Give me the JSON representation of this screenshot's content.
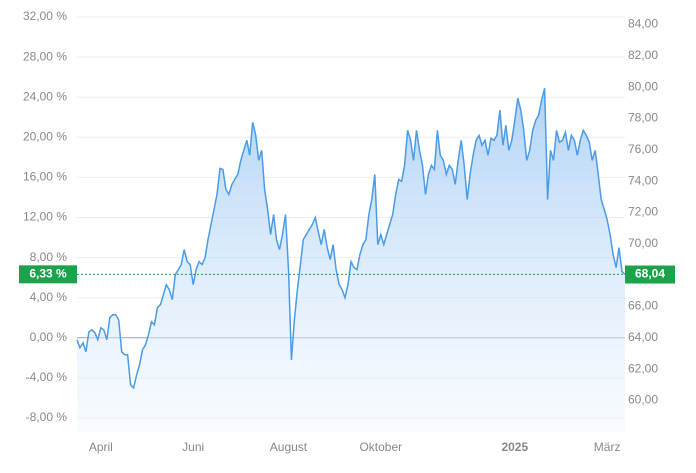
{
  "chart_data": {
    "type": "line",
    "color": "#4a9be8",
    "values": [
      -0.2,
      -1.0,
      -0.5,
      -1.4,
      0.6,
      0.8,
      0.5,
      -0.2,
      1.0,
      0.8,
      -0.2,
      2.0,
      2.3,
      2.3,
      1.8,
      -1.4,
      -1.7,
      -1.7,
      -4.7,
      -5.0,
      -3.7,
      -2.7,
      -1.2,
      -0.7,
      0.3,
      1.6,
      1.3,
      3.0,
      3.3,
      4.3,
      5.3,
      4.8,
      3.8,
      6.3,
      6.8,
      7.3,
      8.8,
      7.6,
      7.3,
      5.3,
      6.8,
      7.6,
      7.3,
      8.0,
      9.8,
      11.3,
      12.8,
      14.3,
      16.9,
      16.8,
      14.8,
      14.3,
      15.3,
      15.8,
      16.3,
      17.7,
      18.7,
      19.7,
      18.2,
      21.5,
      20.2,
      17.7,
      18.7,
      14.8,
      12.8,
      10.3,
      12.3,
      9.8,
      8.8,
      10.3,
      12.3,
      6.8,
      -2.2,
      1.8,
      4.8,
      7.3,
      9.8,
      10.3,
      10.8,
      11.3,
      12.0,
      10.6,
      9.3,
      10.8,
      9.0,
      7.8,
      9.3,
      6.8,
      5.3,
      4.8,
      4.0,
      5.3,
      7.6,
      7.0,
      6.8,
      8.3,
      9.3,
      9.8,
      12.3,
      13.8,
      16.3,
      9.3,
      10.3,
      9.3,
      10.3,
      11.3,
      12.3,
      14.3,
      15.8,
      15.6,
      17.2,
      20.7,
      19.7,
      17.7,
      20.7,
      18.7,
      17.2,
      14.3,
      16.3,
      17.2,
      16.8,
      20.7,
      18.2,
      17.7,
      16.3,
      17.2,
      16.8,
      15.3,
      17.7,
      19.7,
      17.2,
      13.8,
      16.3,
      18.2,
      19.7,
      20.2,
      19.2,
      19.7,
      18.2,
      19.9,
      19.7,
      20.2,
      22.7,
      19.2,
      21.2,
      18.7,
      19.7,
      21.7,
      23.9,
      22.7,
      20.7,
      17.7,
      18.7,
      20.7,
      21.7,
      22.2,
      23.7,
      24.9,
      13.8,
      18.7,
      17.7,
      20.7,
      19.5,
      19.7,
      20.5,
      18.7,
      20.2,
      19.7,
      18.2,
      19.7,
      20.7,
      20.2,
      19.5,
      17.7,
      18.7,
      16.3,
      13.8,
      12.8,
      11.8,
      10.3,
      8.3,
      7.0,
      9.0,
      6.6,
      6.33
    ],
    "xlim": [
      0,
      184
    ],
    "xticks": [
      {
        "value": 8,
        "label": "April"
      },
      {
        "value": 39,
        "label": "Juni"
      },
      {
        "value": 71,
        "label": "August"
      },
      {
        "value": 102,
        "label": "Oktober"
      },
      {
        "value": 147,
        "label": "2025"
      },
      {
        "value": 178,
        "label": "März"
      }
    ],
    "ylim": [
      -8,
      32
    ],
    "yticks": [
      {
        "value": 32,
        "label": "32,00 %"
      },
      {
        "value": 28,
        "label": "28,00 %"
      },
      {
        "value": 24,
        "label": "24,00 %"
      },
      {
        "value": 20,
        "label": "20,00 %"
      },
      {
        "value": 16,
        "label": "16,00 %"
      },
      {
        "value": 12,
        "label": "12,00 %"
      },
      {
        "value": 8,
        "label": "8,00 %"
      },
      {
        "value": 4,
        "label": "4,00 %"
      },
      {
        "value": 0,
        "label": "0,00 %"
      },
      {
        "value": -4,
        "label": "-4,00 %"
      },
      {
        "value": -8,
        "label": "-8,00 %"
      }
    ],
    "y2lim": [
      58.88,
      84.48
    ],
    "y2ticks": [
      {
        "value": 84,
        "label": "84,00"
      },
      {
        "value": 82,
        "label": "82,00"
      },
      {
        "value": 80,
        "label": "80,00"
      },
      {
        "value": 78,
        "label": "78,00"
      },
      {
        "value": 76,
        "label": "76,00"
      },
      {
        "value": 74,
        "label": "74,00"
      },
      {
        "value": 72,
        "label": "72,00"
      },
      {
        "value": 70,
        "label": "70,00"
      },
      {
        "value": 68,
        "label": "68,00"
      },
      {
        "value": 66,
        "label": "66,00"
      },
      {
        "value": 64,
        "label": "64,00"
      },
      {
        "value": 62,
        "label": "62,00"
      },
      {
        "value": 60,
        "label": "60,00"
      }
    ],
    "last_label": {
      "value": 6.33,
      "label": "6,33 %"
    },
    "last_label_y2": {
      "value": 68.04,
      "label": "68,04"
    },
    "marker_color": "#1aa34a",
    "grid": true
  }
}
